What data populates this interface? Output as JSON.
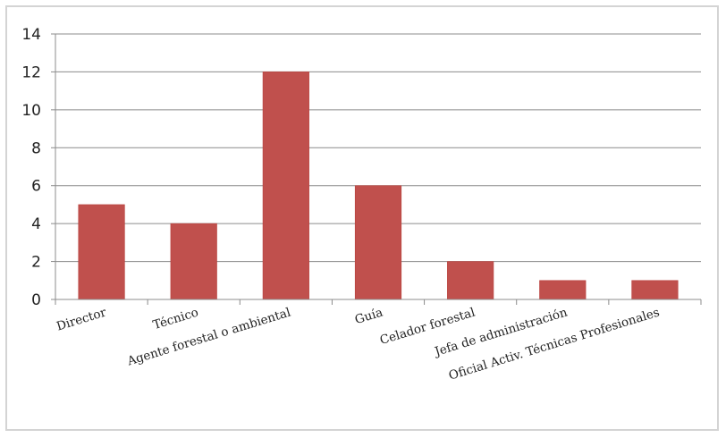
{
  "chart_data": {
    "type": "bar",
    "title": "",
    "xlabel": "",
    "ylabel": "",
    "categories": [
      "Director",
      "Técnico",
      "Agente forestal o ambiental",
      "Guía",
      "Celador forestal",
      "Jefa de administración",
      "Oficial Activ. Técnicas Profesionales"
    ],
    "values": [
      5,
      4,
      12,
      6,
      2,
      1,
      1
    ],
    "ylim": [
      0,
      14
    ],
    "yticks": [
      "0",
      "2",
      "4",
      "6",
      "8",
      "10",
      "12",
      "14"
    ],
    "grid": true,
    "legend": "none",
    "colors": {
      "bar": "#c0504d",
      "bar_edge": "#b9403c",
      "grid": "#8c8c8c",
      "frame": "#d4d4d4"
    }
  }
}
